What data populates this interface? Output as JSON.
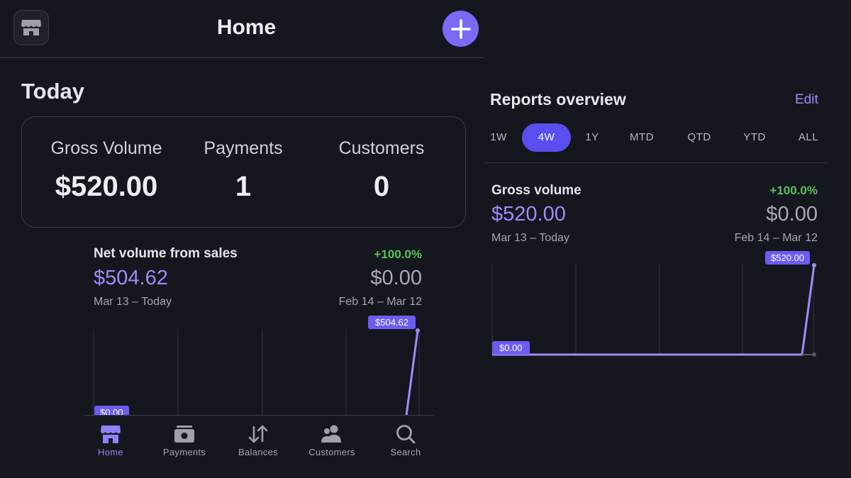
{
  "header": {
    "title": "Home"
  },
  "today": {
    "title": "Today",
    "stats": [
      {
        "label": "Gross Volume",
        "value": "$520.00"
      },
      {
        "label": "Payments",
        "value": "1"
      },
      {
        "label": "Customers",
        "value": "0"
      }
    ]
  },
  "net_volume": {
    "title": "Net volume from sales",
    "change": "+100.0%",
    "value": "$504.62",
    "previous": "$0.00",
    "current_range": "Mar 13 – Today",
    "previous_range": "Feb 14 – Mar 12",
    "start_tag": "$0.00",
    "end_tag": "$504.62"
  },
  "reports": {
    "title": "Reports overview",
    "edit_label": "Edit",
    "ranges": [
      "1W",
      "4W",
      "1Y",
      "MTD",
      "QTD",
      "YTD",
      "ALL"
    ],
    "active_range": "4W",
    "gross_volume": {
      "title": "Gross volume",
      "change": "+100.0%",
      "value": "$520.00",
      "previous": "$0.00",
      "current_range": "Mar 13 – Today",
      "previous_range": "Feb 14 – Mar 12",
      "start_tag": "$0.00",
      "end_tag": "$520.00"
    }
  },
  "nav": {
    "items": [
      {
        "label": "Home",
        "icon": "storefront-icon",
        "active": true
      },
      {
        "label": "Payments",
        "icon": "cash-icon",
        "active": false
      },
      {
        "label": "Balances",
        "icon": "arrows-updown-icon",
        "active": false
      },
      {
        "label": "Customers",
        "icon": "people-icon",
        "active": false
      },
      {
        "label": "Search",
        "icon": "search-icon",
        "active": false
      }
    ]
  },
  "colors": {
    "accent": "#7a6bf7",
    "positive": "#58c25a",
    "background": "#15171f"
  }
}
